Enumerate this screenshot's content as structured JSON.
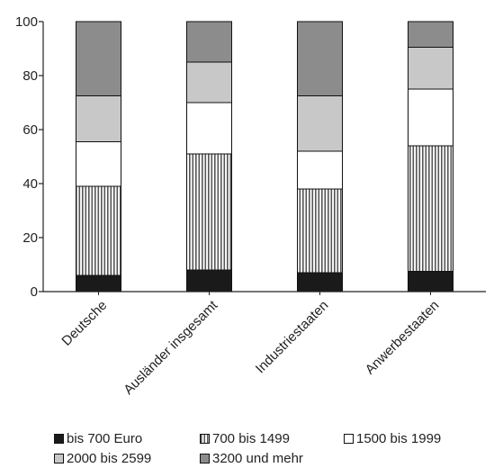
{
  "chart_data": {
    "type": "bar",
    "stacked": true,
    "categories": [
      "Deutsche",
      "Ausländer insgesamt",
      "Industriestaaten",
      "Anwerbestaaten"
    ],
    "series": [
      {
        "name": "bis 700 Euro",
        "values": [
          6,
          8,
          7,
          7.5
        ],
        "color": "#1a1a1a",
        "pattern": "solid"
      },
      {
        "name": "700 bis 1499",
        "values": [
          33,
          43,
          31,
          46.5
        ],
        "color": "#ffffff",
        "pattern": "vertical-stripes"
      },
      {
        "name": "1500 bis 1999",
        "values": [
          16.5,
          19,
          14,
          21
        ],
        "color": "#ffffff",
        "pattern": "solid"
      },
      {
        "name": "2000 bis 2599",
        "values": [
          17,
          15,
          20.5,
          15.5
        ],
        "color": "#c8c8c8",
        "pattern": "solid"
      },
      {
        "name": "3200 und mehr",
        "values": [
          27.5,
          15,
          27.5,
          9.5
        ],
        "color": "#8c8c8c",
        "pattern": "solid"
      }
    ],
    "yticks": [
      0,
      20,
      40,
      60,
      80,
      100
    ],
    "ylim": [
      0,
      100
    ],
    "legend_position": "bottom"
  }
}
